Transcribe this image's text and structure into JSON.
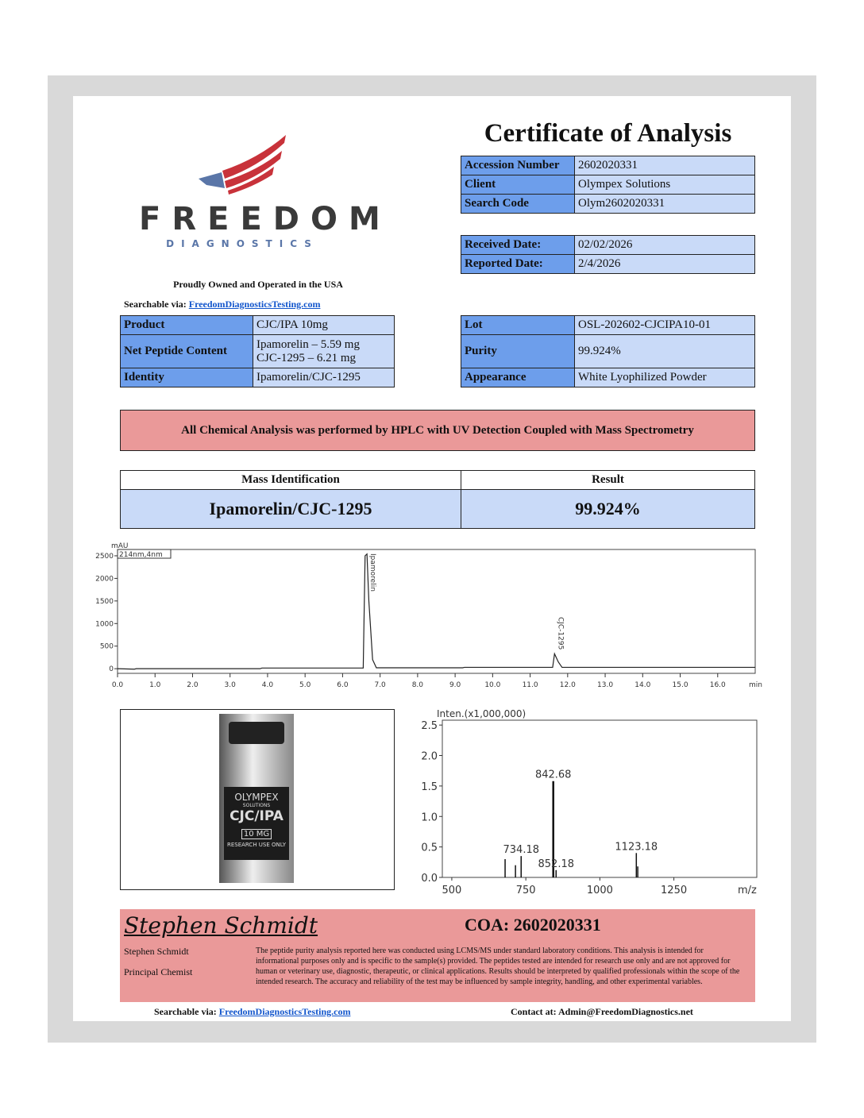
{
  "logo": {
    "name": "FREEDOM",
    "sub": "DIAGNOSTICS",
    "colors": {
      "stripe": "#c8323a",
      "eagle": "#5a76a8",
      "text": "#3a3a3a"
    }
  },
  "tagline": "Proudly Owned and Operated in the USA",
  "search_top": {
    "label": "Searchable via:",
    "link": "FreedomDiagnosticsTesting.com"
  },
  "title": "Certificate of Analysis",
  "info": [
    {
      "label": "Accession Number",
      "value": "2602020331"
    },
    {
      "label": "Client",
      "value": "Olympex Solutions"
    },
    {
      "label": "Search Code",
      "value": "Olym2602020331"
    }
  ],
  "dates": [
    {
      "label": "Received Date:",
      "value": "02/02/2026"
    },
    {
      "label": "Reported Date:",
      "value": "2/4/2026"
    }
  ],
  "product_left": [
    {
      "label": "Product",
      "value": "CJC/IPA 10mg"
    },
    {
      "label": "Net Peptide Content",
      "value": "Ipamorelin – 5.59 mg",
      "value2": "CJC-1295 – 6.21 mg"
    },
    {
      "label": "Identity",
      "value": "Ipamorelin/CJC-1295"
    }
  ],
  "product_right": [
    {
      "label": "Lot",
      "value": "OSL-202602-CJCIPA10-01"
    },
    {
      "label": "Purity",
      "value": "99.924%"
    },
    {
      "label": "Appearance",
      "value": "White Lyophilized Powder"
    }
  ],
  "banner": "All Chemical Analysis was performed by HPLC with UV Detection Coupled with Mass Spectrometry",
  "mass_table": {
    "headers": [
      "Mass Identification",
      "Result"
    ],
    "identity": "Ipamorelin/CJC-1295",
    "result": "99.924%"
  },
  "vial": {
    "brand": "OLYMPEX",
    "brand_sub": "SOLUTIONS",
    "product": "CJC/IPA",
    "dose": "10 MG",
    "note": "RESEARCH USE ONLY"
  },
  "chart_data": [
    {
      "type": "line",
      "ylabel": "mAU",
      "legend": "214nm,4nm",
      "xunit": "min",
      "xlim": [
        0,
        17
      ],
      "ylim": [
        -50,
        2640
      ],
      "xticks": [
        "0.0",
        "1.0",
        "2.0",
        "3.0",
        "4.0",
        "5.0",
        "6.0",
        "7.0",
        "8.0",
        "9.0",
        "10.0",
        "11.0",
        "12.0",
        "13.0",
        "14.0",
        "15.0",
        "16.0"
      ],
      "yticks": [
        "0",
        "500",
        "1000",
        "1500",
        "2000",
        "2500"
      ],
      "x": [
        0,
        0.45,
        0.5,
        3.8,
        3.85,
        6.55,
        6.6,
        6.65,
        6.7,
        6.8,
        6.9,
        9.2,
        9.25,
        11.6,
        11.65,
        11.75,
        11.85,
        17
      ],
      "y": [
        0,
        -10,
        0,
        0,
        15,
        15,
        2500,
        2540,
        1500,
        200,
        20,
        20,
        30,
        30,
        330,
        150,
        30,
        30
      ],
      "peaks": [
        {
          "label": "Ipamorelin",
          "x": 6.65
        },
        {
          "label": "CJC-1295",
          "x": 11.65
        }
      ]
    },
    {
      "type": "bar",
      "ylabel": "Inten.(x1,000,000)",
      "xunit": "m/z",
      "xlim": [
        468,
        1530
      ],
      "ylim": [
        0,
        2.5
      ],
      "xticks": [
        "500",
        "750",
        "1000",
        "1250"
      ],
      "yticks": [
        "0.0",
        "0.5",
        "1.0",
        "1.5",
        "2.0",
        "2.5"
      ],
      "x": [
        680,
        715,
        734.18,
        842.68,
        852.18,
        1123.18,
        1128
      ],
      "y": [
        0.3,
        0.2,
        0.35,
        1.58,
        0.12,
        0.4,
        0.18
      ],
      "labels": [
        {
          "text": "734.18",
          "x": 734.18,
          "y": 0.35
        },
        {
          "text": "842.68",
          "x": 842.68,
          "y": 1.58
        },
        {
          "text": "852.18",
          "x": 852.18,
          "y": 0.12
        },
        {
          "text": "1123.18",
          "x": 1123.18,
          "y": 0.4
        }
      ]
    }
  ],
  "signature": "Stephen Schmidt",
  "coa": "COA: 2602020331",
  "signer": {
    "name": "Stephen Schmidt",
    "role": "Principal Chemist"
  },
  "disclaimer": "The peptide purity analysis reported here was conducted using LCMS/MS under standard laboratory conditions. This analysis is intended for informational purposes only and is specific to the sample(s) provided. The peptides tested are intended for research use only and are not approved for human or veterinary use, diagnostic, therapeutic, or clinical applications. Results should be interpreted by qualified professionals within the scope of the intended research. The accuracy and reliability of the test may be influenced by sample integrity, handling, and other experimental variables.",
  "footer": {
    "search_label": "Searchable via:",
    "link": "FreedomDiagnosticsTesting.com",
    "contact": "Contact at: Admin@FreedomDiagnostics.net"
  },
  "colors": {
    "label_cell": "#6d9eeb",
    "value_cell": "#c9daf8",
    "banner": "#ea9999",
    "page_frame": "#d9d9d9"
  }
}
